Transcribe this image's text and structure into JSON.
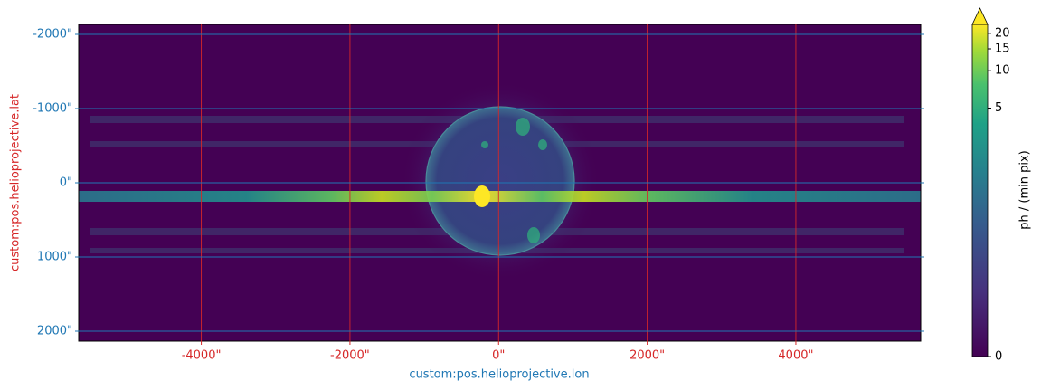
{
  "chart_data": {
    "type": "image",
    "x_label": "custom:pos.helioprojective.lon",
    "y_label": "custom:pos.helioprojective.lat",
    "xlim": [
      -5650,
      5680
    ],
    "ylim": [
      -2134,
      2134
    ],
    "y_inverted": true,
    "grid": true,
    "xtick_color": "#d62728",
    "ytick_color": "#1f77b4",
    "xlabel_color": "#1f77b4",
    "ylabel_color": "#d62728",
    "xticks": [
      {
        "value": -4000,
        "label": "-4000\""
      },
      {
        "value": -2000,
        "label": "-2000\""
      },
      {
        "value": 0,
        "label": "0\""
      },
      {
        "value": 2000,
        "label": "2000\""
      },
      {
        "value": 4000,
        "label": "4000\""
      }
    ],
    "yticks": [
      {
        "value": -2000,
        "label": "-2000\""
      },
      {
        "value": -1000,
        "label": "-1000\""
      },
      {
        "value": 0,
        "label": "0\""
      },
      {
        "value": 1000,
        "label": "1000\""
      },
      {
        "value": 2000,
        "label": "2000\""
      }
    ],
    "colorbar": {
      "label": "ph / (min pix)",
      "lim": [
        0,
        23.6
      ],
      "scale": "asinh",
      "extend": "max",
      "ticks": [
        0,
        5,
        10,
        15,
        20
      ]
    }
  }
}
